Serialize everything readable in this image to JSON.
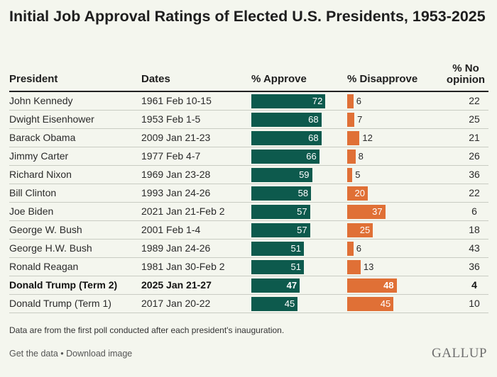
{
  "title": "Initial Job Approval Ratings of Elected U.S. Presidents, 1953-2025",
  "headers": {
    "president": "President",
    "dates": "Dates",
    "approve": "% Approve",
    "disapprove": "% Disapprove",
    "no_opinion_line1": "% No",
    "no_opinion_line2": "opinion"
  },
  "colors": {
    "approve": "#0d5a4d",
    "disapprove": "#e07036",
    "background": "#f4f6ee"
  },
  "chart_data": {
    "type": "table",
    "columns": [
      "President",
      "Dates",
      "% Approve",
      "% Disapprove",
      "% No opinion"
    ],
    "rows": [
      {
        "president": "John Kennedy",
        "dates": "1961 Feb 10-15",
        "approve": 72,
        "disapprove": 6,
        "no_opinion": 22,
        "highlight": false
      },
      {
        "president": "Dwight Eisenhower",
        "dates": "1953 Feb 1-5",
        "approve": 68,
        "disapprove": 7,
        "no_opinion": 25,
        "highlight": false
      },
      {
        "president": "Barack Obama",
        "dates": "2009 Jan 21-23",
        "approve": 68,
        "disapprove": 12,
        "no_opinion": 21,
        "highlight": false
      },
      {
        "president": "Jimmy Carter",
        "dates": "1977 Feb 4-7",
        "approve": 66,
        "disapprove": 8,
        "no_opinion": 26,
        "highlight": false
      },
      {
        "president": "Richard Nixon",
        "dates": "1969 Jan 23-28",
        "approve": 59,
        "disapprove": 5,
        "no_opinion": 36,
        "highlight": false
      },
      {
        "president": "Bill Clinton",
        "dates": "1993 Jan 24-26",
        "approve": 58,
        "disapprove": 20,
        "no_opinion": 22,
        "highlight": false
      },
      {
        "president": "Joe Biden",
        "dates": "2021 Jan 21-Feb 2",
        "approve": 57,
        "disapprove": 37,
        "no_opinion": 6,
        "highlight": false
      },
      {
        "president": "George W. Bush",
        "dates": "2001 Feb 1-4",
        "approve": 57,
        "disapprove": 25,
        "no_opinion": 18,
        "highlight": false
      },
      {
        "president": "George H.W. Bush",
        "dates": "1989 Jan 24-26",
        "approve": 51,
        "disapprove": 6,
        "no_opinion": 43,
        "highlight": false
      },
      {
        "president": "Ronald Reagan",
        "dates": "1981 Jan 30-Feb 2",
        "approve": 51,
        "disapprove": 13,
        "no_opinion": 36,
        "highlight": false
      },
      {
        "president": "Donald Trump (Term 2)",
        "dates": "2025 Jan 21-27",
        "approve": 47,
        "disapprove": 48,
        "no_opinion": 4,
        "highlight": true
      },
      {
        "president": "Donald Trump (Term 1)",
        "dates": "2017 Jan 20-22",
        "approve": 45,
        "disapprove": 45,
        "no_opinion": 10,
        "highlight": false
      }
    ]
  },
  "note": "Data are from the first poll conducted after each president's inauguration.",
  "footer": {
    "get_data": "Get the data",
    "separator": " • ",
    "download": "Download image"
  },
  "logo": "GALLUP"
}
